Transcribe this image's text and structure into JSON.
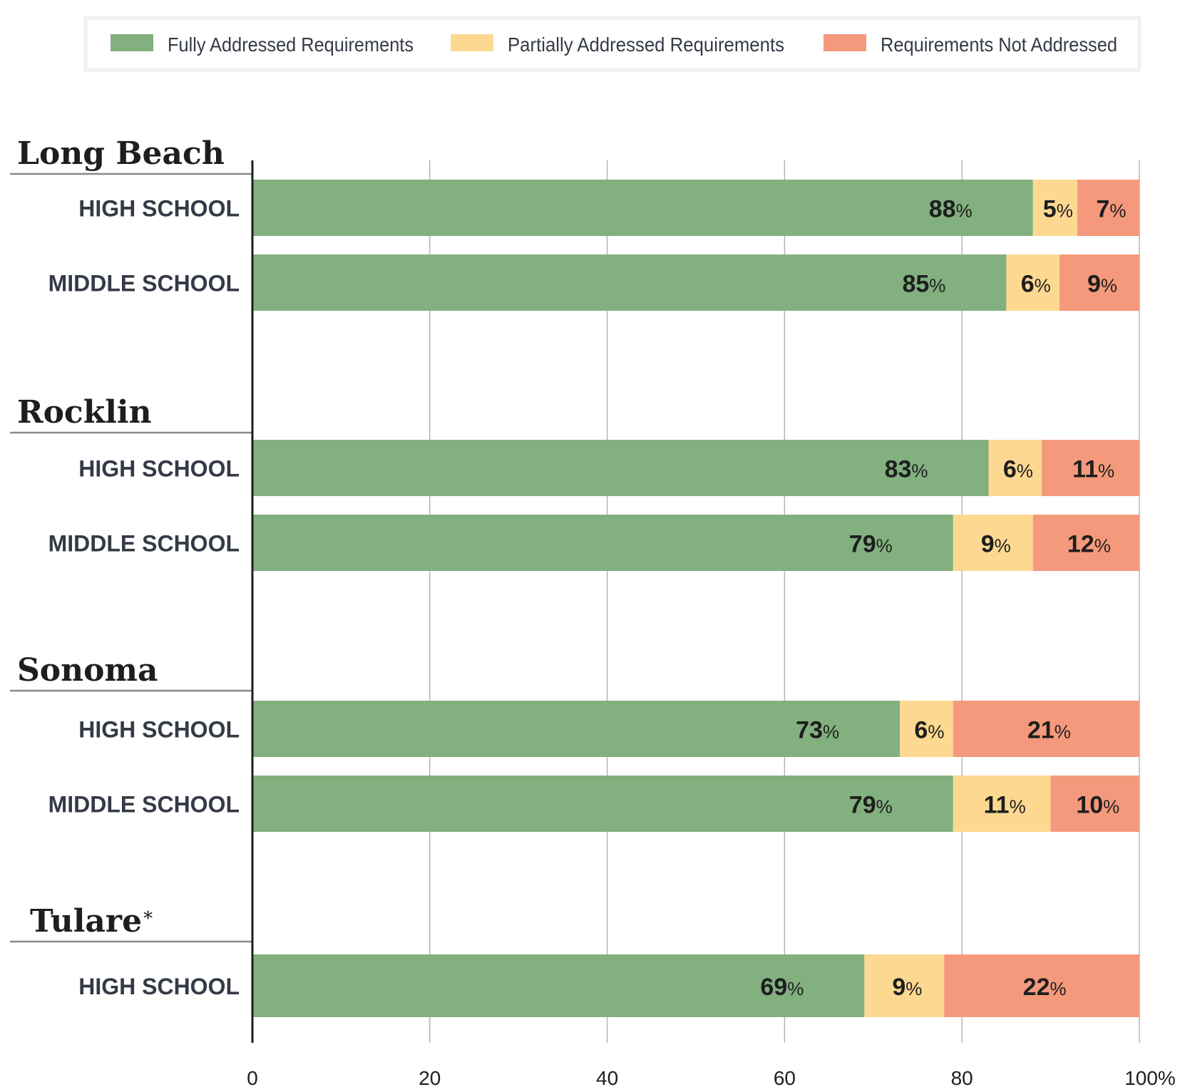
{
  "chart_data": {
    "type": "bar",
    "orientation": "horizontal",
    "stacked": true,
    "xlim": [
      0,
      100
    ],
    "xticks": [
      "0",
      "20",
      "40",
      "60",
      "80",
      "100%"
    ],
    "grid": true,
    "legend_position": "top",
    "series": [
      {
        "name": "Fully Addressed Requirements",
        "color": "#82b07f"
      },
      {
        "name": "Partially Addressed Requirements",
        "color": "#fdd891"
      },
      {
        "name": "Requirements Not Addressed",
        "color": "#f4997b"
      }
    ],
    "groups": [
      {
        "title": "Long Beach",
        "note": "",
        "rows": [
          {
            "label": "HIGH SCHOOL",
            "values": [
              88,
              5,
              7
            ]
          },
          {
            "label": "MIDDLE SCHOOL",
            "values": [
              85,
              6,
              9
            ]
          }
        ]
      },
      {
        "title": "Rocklin",
        "note": "",
        "rows": [
          {
            "label": "HIGH SCHOOL",
            "values": [
              83,
              6,
              11
            ]
          },
          {
            "label": "MIDDLE SCHOOL",
            "values": [
              79,
              9,
              12
            ]
          }
        ]
      },
      {
        "title": "Sonoma",
        "note": "",
        "rows": [
          {
            "label": "HIGH SCHOOL",
            "values": [
              73,
              6,
              21
            ]
          },
          {
            "label": "MIDDLE SCHOOL",
            "values": [
              79,
              11,
              10
            ]
          }
        ]
      },
      {
        "title": "Tulare",
        "note": "*",
        "rows": [
          {
            "label": "HIGH SCHOOL",
            "values": [
              69,
              9,
              22
            ]
          }
        ]
      }
    ]
  }
}
